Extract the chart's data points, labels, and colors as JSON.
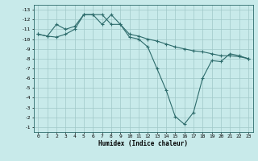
{
  "title": "",
  "xlabel": "Humidex (Indice chaleur)",
  "ylabel": "",
  "background_color": "#c8eaea",
  "grid_color": "#a0c8c8",
  "line_color": "#2d6b6b",
  "xlim": [
    -0.5,
    23.5
  ],
  "ylim": [
    -13.5,
    -0.5
  ],
  "xticks": [
    0,
    1,
    2,
    3,
    4,
    5,
    6,
    7,
    8,
    9,
    10,
    11,
    12,
    13,
    14,
    15,
    16,
    17,
    18,
    19,
    20,
    21,
    22,
    23
  ],
  "yticks": [
    -1,
    -2,
    -3,
    -4,
    -5,
    -6,
    -7,
    -8,
    -9,
    -10,
    -11,
    -12,
    -13
  ],
  "line1_x": [
    0,
    1,
    2,
    3,
    4,
    5,
    6,
    7,
    8,
    9,
    10,
    11,
    12,
    13,
    14,
    15,
    16,
    17,
    18,
    19,
    20,
    21,
    22,
    23
  ],
  "line1_y": [
    -10.5,
    -10.3,
    -10.2,
    -10.5,
    -11.0,
    -12.5,
    -12.5,
    -11.5,
    -12.5,
    -11.5,
    -10.2,
    -10.0,
    -9.2,
    -7.0,
    -4.8,
    -2.1,
    -1.3,
    -2.5,
    -6.0,
    -7.8,
    -7.7,
    -8.5,
    -8.3,
    -8.0
  ],
  "line2_x": [
    0,
    1,
    2,
    3,
    4,
    5,
    6,
    7,
    8,
    9,
    10,
    11,
    12,
    13,
    14,
    15,
    16,
    17,
    18,
    19,
    20,
    21,
    22,
    23
  ],
  "line2_y": [
    -10.5,
    -10.3,
    -11.5,
    -11.0,
    -11.3,
    -12.5,
    -12.5,
    -12.5,
    -11.5,
    -11.5,
    -10.5,
    -10.3,
    -10.0,
    -9.8,
    -9.5,
    -9.2,
    -9.0,
    -8.8,
    -8.7,
    -8.5,
    -8.3,
    -8.3,
    -8.2,
    -8.0
  ],
  "marker": "+",
  "markersize": 3.5,
  "linewidth": 0.8,
  "tick_fontsize": 4.5,
  "xlabel_fontsize": 5.5
}
